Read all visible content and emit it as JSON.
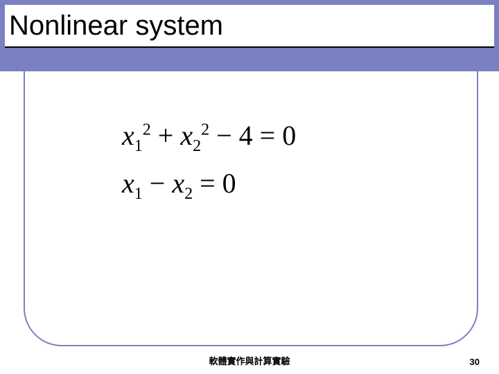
{
  "colors": {
    "band": "#7a80c2",
    "background": "#ffffff",
    "text": "#000000"
  },
  "title": "Nonlinear system",
  "equations": {
    "eq1": {
      "var1": "x",
      "sub1": "1",
      "sup1": "2",
      "op1": " + ",
      "var2": "x",
      "sub2": "2",
      "sup2": "2",
      "op2": " − 4 = 0"
    },
    "eq2": {
      "var1": "x",
      "sub1": "1",
      "op1": " − ",
      "var2": "x",
      "sub2": "2",
      "op2": " = 0"
    }
  },
  "footer": "軟體實作與計算實驗",
  "page": "30"
}
